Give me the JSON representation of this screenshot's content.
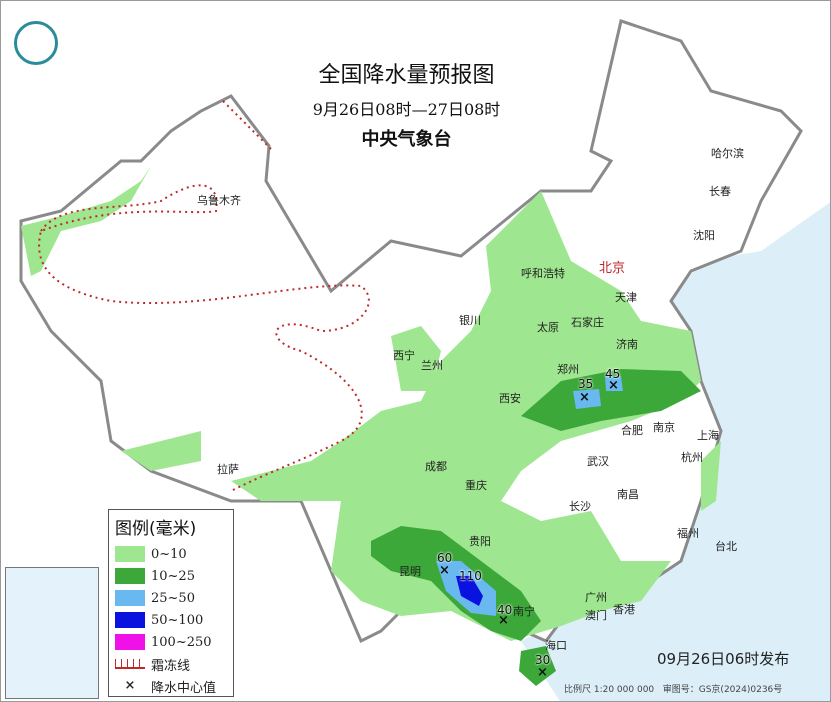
{
  "header": {
    "title": "全国降水量预报图",
    "period": "9月26日08时—27日08时",
    "issuer": "中央气象台"
  },
  "logo": {
    "icon": "cma-logo-icon",
    "color": "#2a8c9a"
  },
  "cities": [
    "乌鲁木齐",
    "哈尔滨",
    "长春",
    "沈阳",
    "呼和浩特",
    "北京",
    "天津",
    "银川",
    "太原",
    "石家庄",
    "济南",
    "西宁",
    "兰州",
    "郑州",
    "西安",
    "合肥",
    "南京",
    "上海",
    "武汉",
    "杭州",
    "成都",
    "重庆",
    "南昌",
    "长沙",
    "拉萨",
    "贵阳",
    "福州",
    "台北",
    "昆明",
    "南宁",
    "广州",
    "澳门",
    "香港",
    "海口"
  ],
  "rain_centers": [
    "35",
    "45",
    "60",
    "110",
    "40",
    "30"
  ],
  "legend": {
    "title": "图例(毫米)",
    "items": [
      {
        "label": "0~10",
        "color": "#9ee68f"
      },
      {
        "label": "10~25",
        "color": "#3da83a"
      },
      {
        "label": "25~50",
        "color": "#6ab8f0"
      },
      {
        "label": "50~100",
        "color": "#0a12e0"
      },
      {
        "label": "100~250",
        "color": "#f010e8"
      }
    ],
    "frost_label": "霜冻线",
    "frost_color": "#c0282a",
    "center_label": "降水中心值",
    "center_symbol": "×"
  },
  "footer": {
    "issued": "09月26日06时发布",
    "scale": "比例尺 1:20 000 000",
    "map_no": "审图号：GS京(2024)0236号"
  }
}
